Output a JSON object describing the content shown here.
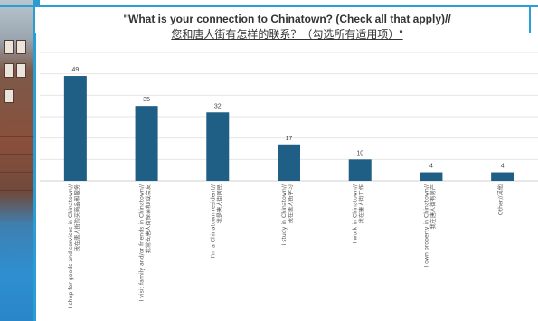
{
  "title": {
    "line1": "\"What is your connection to Chinatown? (Check all that apply)//",
    "line2": "您和唐人街有怎样的联系？（勾选所有适用项）\""
  },
  "chart_data": {
    "type": "bar",
    "title": "\"What is your connection to Chinatown? (Check all that apply)// 您和唐人街有怎样的联系？（勾选所有适用项）\"",
    "xlabel": "",
    "ylabel": "",
    "ylim": [
      0,
      60
    ],
    "grid": true,
    "categories": [
      [
        "I shop for goods and services in Chinatown//",
        "我在唐人街购买商品和服务"
      ],
      [
        "I visit family and/or friends in Chinatown//",
        "我常去唐人街探亲和/或会友"
      ],
      [
        "I'm a Chinatown resident//",
        "我是唐人街居民"
      ],
      [
        "I study in Chinatown//",
        "我在唐人街学习"
      ],
      [
        "I work in Chinatown//",
        "我在唐人街工作"
      ],
      [
        "I own property in Chinatown//",
        "我在唐人街有房产"
      ],
      [
        "Other//其他"
      ]
    ],
    "values": [
      49,
      35,
      32,
      17,
      10,
      4,
      4
    ],
    "colors": {
      "bar": "#1f5f86",
      "grid": "#e6e6e6"
    }
  }
}
